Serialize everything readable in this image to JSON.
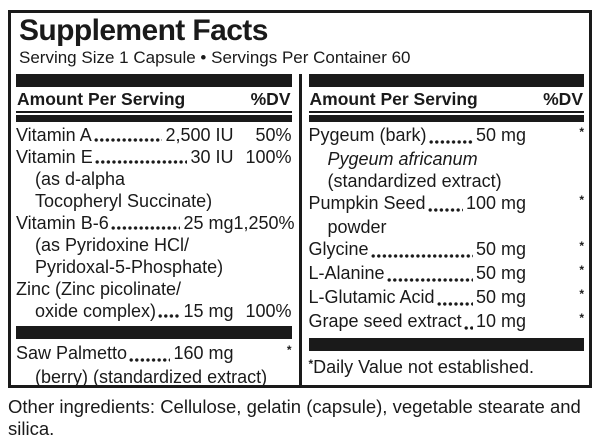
{
  "title": "Supplement Facts",
  "serving_info": "Serving Size 1 Capsule • Servings Per Container 60",
  "colors": {
    "ink": "#1a1a1a",
    "background": "#ffffff"
  },
  "columns": [
    {
      "header": {
        "amount_label": "Amount Per Serving",
        "dv_label": "%DV"
      },
      "rows": [
        {
          "type": "item",
          "name": "Vitamin A",
          "amount": "2,500 IU",
          "dv": "50%"
        },
        {
          "type": "item",
          "name": "Vitamin E",
          "amount": "30 IU",
          "dv": "100%"
        },
        {
          "type": "cont",
          "text": "(as d-alpha"
        },
        {
          "type": "cont",
          "text": "Tocopheryl Succinate)"
        },
        {
          "type": "item",
          "name": "Vitamin B-6",
          "amount": "25 mg",
          "dv": "1,250%"
        },
        {
          "type": "cont",
          "text": "(as Pyridoxine HCl/"
        },
        {
          "type": "cont",
          "text": "Pyridoxal-5-Phosphate)"
        },
        {
          "type": "plain",
          "text": "Zinc (Zinc picolinate/"
        },
        {
          "type": "item",
          "name": "oxide complex)",
          "amount": "15 mg",
          "dv": "100%",
          "indent": true
        },
        {
          "type": "bar"
        },
        {
          "type": "item",
          "name": "Saw Palmetto",
          "amount": "160 mg",
          "dv": "*"
        },
        {
          "type": "cont",
          "text": "(berry) (standardized extract)"
        }
      ]
    },
    {
      "header": {
        "amount_label": "Amount Per Serving",
        "dv_label": "%DV"
      },
      "rows": [
        {
          "type": "item",
          "name": "Pygeum (bark)",
          "amount": "50 mg",
          "dv": "*"
        },
        {
          "type": "cont",
          "text": "Pygeum africanum",
          "italic": true
        },
        {
          "type": "cont",
          "text": "(standardized extract)"
        },
        {
          "type": "item",
          "name": "Pumpkin Seed",
          "amount": "100 mg",
          "dv": "*"
        },
        {
          "type": "cont",
          "text": "powder"
        },
        {
          "type": "item",
          "name": "Glycine",
          "amount": "50 mg",
          "dv": "*"
        },
        {
          "type": "item",
          "name": "L-Alanine",
          "amount": "50 mg",
          "dv": "*"
        },
        {
          "type": "item",
          "name": "L-Glutamic Acid",
          "amount": "50 mg",
          "dv": "*"
        },
        {
          "type": "item",
          "name": "Grape seed extract",
          "amount": "10 mg",
          "dv": "*"
        },
        {
          "type": "bar"
        },
        {
          "type": "footnote",
          "ast": "*",
          "text": "Daily Value not established."
        }
      ]
    }
  ],
  "other_ingredients": "Other ingredients: Cellulose, gelatin (capsule), vegetable stearate and silica."
}
